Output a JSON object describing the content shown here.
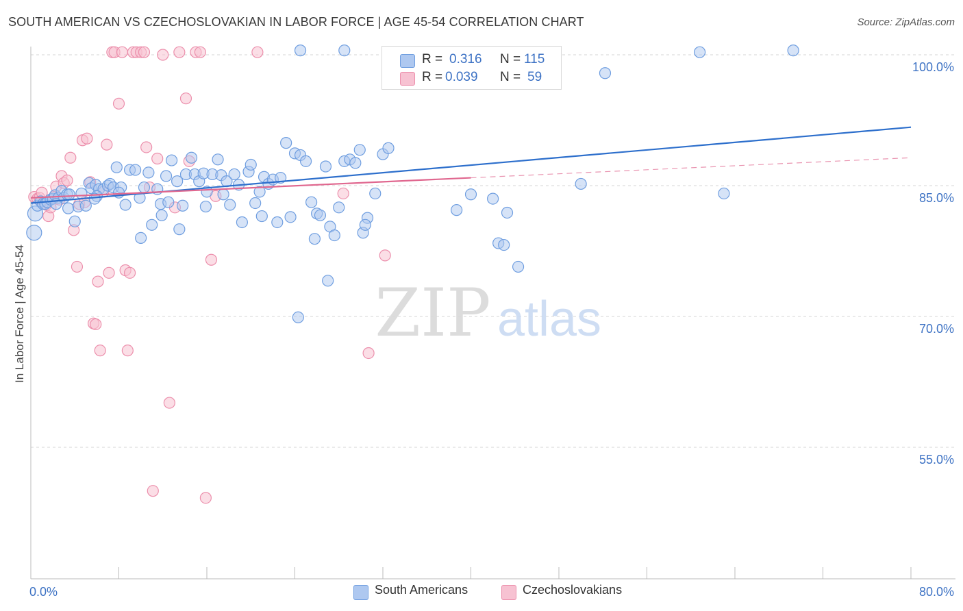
{
  "title": "SOUTH AMERICAN VS CZECHOSLOVAKIAN IN LABOR FORCE | AGE 45-54 CORRELATION CHART",
  "source": "Source: ZipAtlas.com",
  "watermark": {
    "zip": "ZIP",
    "atlas": "atlas"
  },
  "legend": {
    "rows": [
      {
        "r_label": "R =",
        "r_value": "0.316",
        "n_label": "N =",
        "n_value": "115"
      },
      {
        "r_label": "R =",
        "r_value": "0.039",
        "n_label": "N =",
        "n_value": "59"
      }
    ]
  },
  "bottom_legend": [
    "South Americans",
    "Czechoslovakians"
  ],
  "colors": {
    "blue": "#6f9ee0",
    "blue_fill": "#aec8f0",
    "blue_line": "#2d6fcc",
    "pink": "#ec8fac",
    "pink_fill": "#f7c2d2",
    "pink_line": "#e0678f",
    "tick_text": "#3d72c4",
    "grid": "#d6d6d6"
  },
  "chart_data": {
    "type": "scatter",
    "xlabel": "",
    "ylabel": "In Labor Force | Age 45-54",
    "xlim": [
      0,
      80
    ],
    "ylim": [
      40,
      102
    ],
    "x_tick_labels": [
      {
        "value": 0,
        "label": "0.0%"
      },
      {
        "value": 80,
        "label": "80.0%"
      }
    ],
    "x_minor_ticks": [
      8,
      16,
      24,
      32,
      40,
      48,
      56,
      64,
      72,
      80
    ],
    "y_ticks": [
      {
        "value": 100,
        "label": "100.0%"
      },
      {
        "value": 85,
        "label": "85.0%"
      },
      {
        "value": 70,
        "label": "70.0%"
      },
      {
        "value": 55,
        "label": "55.0%"
      }
    ],
    "grid": true,
    "series": [
      {
        "name": "South Americans",
        "R": 0.316,
        "N": 115,
        "trend": {
          "x": [
            0,
            80
          ],
          "y": [
            83.0,
            91.7
          ],
          "style": "solid"
        },
        "points": [
          [
            0.3,
            79.6
          ],
          [
            0.4,
            81.8
          ],
          [
            0.6,
            82.7
          ],
          [
            0.9,
            83.2
          ],
          [
            1.1,
            82.9
          ],
          [
            1.3,
            82.9
          ],
          [
            1.5,
            83.1
          ],
          [
            1.8,
            83.4
          ],
          [
            2.0,
            83.5
          ],
          [
            2.2,
            83.9
          ],
          [
            2.5,
            83.6
          ],
          [
            2.8,
            84.4
          ],
          [
            3.0,
            83.6
          ],
          [
            3.3,
            84.0
          ],
          [
            3.5,
            84.0
          ],
          [
            4.0,
            80.9
          ],
          [
            4.3,
            82.6
          ],
          [
            4.6,
            84.1
          ],
          [
            5.0,
            82.7
          ],
          [
            5.3,
            85.3
          ],
          [
            5.5,
            84.7
          ],
          [
            5.9,
            85.1
          ],
          [
            6.2,
            84.6
          ],
          [
            6.6,
            84.6
          ],
          [
            7.0,
            85.0
          ],
          [
            7.2,
            85.2
          ],
          [
            7.5,
            84.8
          ],
          [
            7.8,
            87.1
          ],
          [
            8.2,
            84.8
          ],
          [
            8.6,
            82.8
          ],
          [
            9.0,
            86.8
          ],
          [
            9.5,
            86.8
          ],
          [
            9.9,
            83.6
          ],
          [
            10.3,
            84.8
          ],
          [
            10.7,
            86.5
          ],
          [
            11.0,
            80.5
          ],
          [
            11.5,
            84.6
          ],
          [
            11.8,
            82.9
          ],
          [
            12.3,
            86.1
          ],
          [
            12.5,
            83.1
          ],
          [
            12.8,
            87.9
          ],
          [
            13.3,
            85.5
          ],
          [
            13.8,
            82.7
          ],
          [
            14.1,
            86.3
          ],
          [
            14.6,
            88.2
          ],
          [
            14.9,
            86.3
          ],
          [
            15.3,
            85.5
          ],
          [
            15.7,
            86.4
          ],
          [
            16.0,
            84.3
          ],
          [
            16.5,
            86.3
          ],
          [
            17.0,
            88.0
          ],
          [
            17.3,
            86.2
          ],
          [
            17.8,
            85.5
          ],
          [
            18.1,
            82.8
          ],
          [
            18.5,
            86.3
          ],
          [
            18.9,
            85.1
          ],
          [
            19.2,
            80.8
          ],
          [
            19.8,
            86.6
          ],
          [
            20.0,
            87.4
          ],
          [
            20.4,
            83.0
          ],
          [
            20.8,
            84.3
          ],
          [
            21.2,
            86.0
          ],
          [
            21.6,
            85.2
          ],
          [
            22.0,
            85.7
          ],
          [
            22.4,
            80.8
          ],
          [
            22.7,
            85.9
          ],
          [
            23.2,
            89.9
          ],
          [
            23.6,
            81.4
          ],
          [
            24.0,
            88.7
          ],
          [
            24.5,
            88.5
          ],
          [
            25.0,
            87.8
          ],
          [
            25.5,
            83.1
          ],
          [
            26.0,
            81.8
          ],
          [
            26.3,
            81.6
          ],
          [
            26.8,
            87.2
          ],
          [
            27.2,
            80.3
          ],
          [
            27.6,
            79.3
          ],
          [
            28.0,
            82.5
          ],
          [
            28.5,
            87.8
          ],
          [
            29.0,
            88.0
          ],
          [
            29.5,
            87.6
          ],
          [
            29.9,
            89.1
          ],
          [
            30.2,
            79.6
          ],
          [
            30.6,
            81.3
          ],
          [
            31.3,
            84.1
          ],
          [
            32.0,
            88.6
          ],
          [
            32.5,
            89.3
          ],
          [
            27.0,
            74.1
          ],
          [
            24.3,
            69.9
          ],
          [
            24.5,
            100.5
          ],
          [
            28.5,
            100.5
          ],
          [
            38.0,
            99.2
          ],
          [
            38.7,
            82.2
          ],
          [
            40.0,
            84.0
          ],
          [
            42.0,
            83.5
          ],
          [
            42.5,
            78.4
          ],
          [
            43.0,
            78.2
          ],
          [
            43.3,
            81.9
          ],
          [
            44.3,
            75.7
          ],
          [
            50.0,
            85.2
          ],
          [
            60.8,
            100.3
          ],
          [
            63.0,
            84.1
          ],
          [
            52.2,
            97.9
          ],
          [
            69.3,
            100.5
          ],
          [
            35.0,
            98.3
          ],
          [
            10.0,
            79.0
          ],
          [
            6.0,
            83.8
          ],
          [
            2.3,
            82.9
          ],
          [
            3.4,
            82.4
          ],
          [
            5.8,
            83.5
          ],
          [
            8.0,
            84.2
          ],
          [
            13.5,
            80.0
          ],
          [
            17.5,
            84.0
          ],
          [
            21.0,
            81.5
          ],
          [
            25.8,
            78.9
          ],
          [
            30.4,
            80.5
          ],
          [
            15.9,
            82.6
          ],
          [
            11.9,
            81.6
          ]
        ]
      },
      {
        "name": "Czechoslovakians",
        "R": 0.039,
        "N": 59,
        "trend": {
          "x": [
            0,
            40,
            80
          ],
          "y": [
            83.6,
            85.9,
            88.2
          ],
          "style": "solid-then-dashed"
        },
        "points": [
          [
            0.3,
            83.7
          ],
          [
            0.6,
            83.5
          ],
          [
            0.8,
            83.6
          ],
          [
            1.0,
            84.2
          ],
          [
            1.2,
            83.1
          ],
          [
            1.4,
            82.8
          ],
          [
            1.6,
            81.5
          ],
          [
            1.8,
            82.5
          ],
          [
            2.1,
            83.7
          ],
          [
            2.3,
            84.9
          ],
          [
            2.6,
            83.4
          ],
          [
            2.8,
            86.1
          ],
          [
            3.0,
            85.3
          ],
          [
            3.3,
            85.6
          ],
          [
            3.6,
            88.2
          ],
          [
            3.9,
            79.9
          ],
          [
            4.2,
            75.7
          ],
          [
            4.4,
            82.9
          ],
          [
            4.7,
            90.2
          ],
          [
            5.1,
            90.4
          ],
          [
            5.4,
            85.4
          ],
          [
            5.7,
            69.2
          ],
          [
            5.9,
            69.1
          ],
          [
            6.1,
            74.0
          ],
          [
            6.3,
            66.1
          ],
          [
            6.6,
            84.3
          ],
          [
            6.9,
            89.7
          ],
          [
            7.1,
            75.0
          ],
          [
            7.4,
            100.3
          ],
          [
            7.6,
            100.3
          ],
          [
            8.0,
            94.4
          ],
          [
            8.3,
            100.3
          ],
          [
            8.6,
            75.3
          ],
          [
            8.8,
            66.1
          ],
          [
            9.0,
            75.0
          ],
          [
            9.3,
            100.3
          ],
          [
            9.6,
            100.3
          ],
          [
            10.0,
            100.3
          ],
          [
            10.3,
            100.3
          ],
          [
            10.5,
            89.4
          ],
          [
            10.8,
            84.8
          ],
          [
            11.1,
            50.0
          ],
          [
            11.5,
            88.1
          ],
          [
            12.0,
            100.0
          ],
          [
            12.6,
            60.1
          ],
          [
            13.1,
            82.5
          ],
          [
            13.5,
            100.3
          ],
          [
            14.1,
            95.0
          ],
          [
            14.4,
            87.8
          ],
          [
            15.0,
            100.3
          ],
          [
            15.4,
            100.3
          ],
          [
            15.9,
            49.2
          ],
          [
            16.4,
            76.5
          ],
          [
            16.8,
            83.8
          ],
          [
            20.6,
            100.3
          ],
          [
            28.4,
            84.1
          ],
          [
            30.7,
            65.8
          ],
          [
            32.2,
            77.0
          ],
          [
            4.9,
            83.1
          ]
        ]
      }
    ]
  }
}
